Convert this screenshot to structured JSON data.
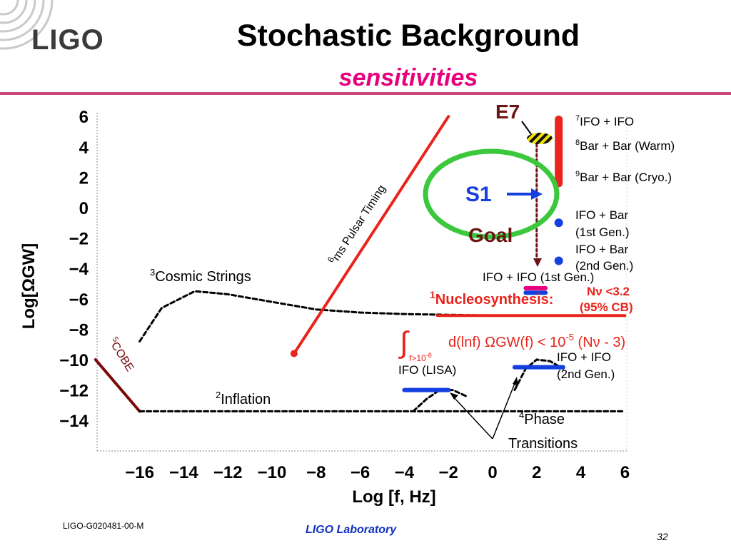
{
  "header": {
    "logo": "LIGO",
    "title": "Stochastic Background",
    "subtitle": "sensitivities"
  },
  "footer": {
    "doc_id": "LIGO-G020481-00-M",
    "lab": "LIGO Laboratory",
    "page": "32"
  },
  "colors": {
    "accent_pink": "#e6007e",
    "curve_red": "#e8241c",
    "ifo_blue": "#1540e0",
    "goal_brown": "#6b1414",
    "circle_green": "#3cc83c"
  },
  "chart_data": {
    "type": "line",
    "xlabel": "Log [f, Hz]",
    "ylabel": "Log[ΩGW]",
    "xlim": [
      -18,
      6
    ],
    "ylim": [
      -16,
      6.5
    ],
    "x_ticks": [
      "−16",
      "−14",
      "−12",
      "−10",
      "−8",
      "−6",
      "−4",
      "−2",
      "0",
      "2",
      "4",
      "6"
    ],
    "x_tick_values": [
      -16,
      -14,
      -12,
      -10,
      -8,
      -6,
      -4,
      -2,
      0,
      2,
      4,
      6
    ],
    "y_ticks": [
      "6",
      "4",
      "2",
      "0",
      "−2",
      "−4",
      "−6",
      "−8",
      "−10",
      "−12",
      "−14"
    ],
    "y_tick_values": [
      6,
      4,
      2,
      0,
      -2,
      -4,
      -6,
      -8,
      -10,
      -12,
      -14
    ],
    "grid": false,
    "series": [
      {
        "name": "COBE",
        "sup": "5",
        "style": "solid",
        "color": "#7a0a0a",
        "x": [
          -18,
          -16
        ],
        "y": [
          -10,
          -13.4
        ]
      },
      {
        "name": "Inflation",
        "sup": "2",
        "style": "dashed",
        "color": "#000000",
        "x": [
          -16,
          6
        ],
        "y": [
          -13.4,
          -13.4
        ]
      },
      {
        "name": "Cosmic Strings",
        "sup": "3",
        "style": "dashed",
        "color": "#000000",
        "x": [
          -16,
          -15,
          -13.5,
          -12,
          -10,
          -8,
          -6,
          -4,
          -2,
          0,
          2,
          4,
          6
        ],
        "y": [
          -8.8,
          -6.6,
          -5.5,
          -5.7,
          -6.2,
          -6.7,
          -6.9,
          -7.0,
          -7.05,
          -7.1,
          -7.1,
          -7.1,
          -7.1
        ]
      },
      {
        "name": "ms Pulsar Timing",
        "sup": "6",
        "style": "solid",
        "color": "#e8241c",
        "x": [
          -9,
          -2
        ],
        "y": [
          -9.6,
          6
        ]
      },
      {
        "name": "Nucleosynthesis",
        "sup": "1",
        "style": "solid",
        "color": "#e8241c",
        "x": [
          -2.5,
          6
        ],
        "y": [
          -7.1,
          -7.1
        ]
      },
      {
        "name": "Phase Transitions (low)",
        "style": "dashed",
        "color": "#000000",
        "x": [
          -3.6,
          -3.0,
          -2.4,
          -1.8,
          -1.2
        ],
        "y": [
          -13.4,
          -12.6,
          -12.0,
          -12.0,
          -12.4
        ]
      },
      {
        "name": "Phase Transitions (high)",
        "style": "dashed",
        "color": "#000000",
        "x": [
          1.0,
          1.5,
          2.0,
          2.6,
          3.2
        ],
        "y": [
          -12.0,
          -10.6,
          -10.0,
          -10.1,
          -10.6
        ]
      },
      {
        "name": "Goal",
        "style": "dotted",
        "color": "#6b1414",
        "x": [
          2.0,
          2.0
        ],
        "y": [
          4.5,
          -3.6
        ]
      }
    ],
    "sensitivities": [
      {
        "id": "bar-cryo",
        "kind": "bar",
        "x": [
          3.0,
          3.0
        ],
        "y": [
          5.8,
          1.6
        ],
        "color": "#e8241c"
      },
      {
        "id": "ifo-bar-1",
        "kind": "dot",
        "x": 3.0,
        "y": -1.0,
        "color": "#1540e0"
      },
      {
        "id": "ifo-bar-2",
        "kind": "dot",
        "x": 3.0,
        "y": -3.5,
        "color": "#1540e0"
      },
      {
        "id": "ifo-ifo-1st",
        "kind": "hbar",
        "x": [
          1.5,
          2.4
        ],
        "y": -5.6,
        "color": "#1540e0"
      },
      {
        "id": "ifo-ifo-1st-pink",
        "kind": "hbar",
        "x": [
          1.5,
          2.4
        ],
        "y": -5.3,
        "color": "#e6007e"
      },
      {
        "id": "ifo-ifo-2nd",
        "kind": "hbar",
        "x": [
          1.0,
          3.2
        ],
        "y": -10.5,
        "color": "#1540e0"
      },
      {
        "id": "ifo-lisa",
        "kind": "hbar",
        "x": [
          -4.0,
          -2.0
        ],
        "y": -12.0,
        "color": "#1540e0"
      }
    ],
    "annotations": {
      "e7": "E7",
      "s1": "S1",
      "goal": "Goal",
      "cosmic_strings": "Cosmic Strings",
      "cosmic_sup": "3",
      "pulsar": "ms Pulsar Timing",
      "pulsar_sup": "6",
      "cobe": "COBE",
      "cobe_sup": "5",
      "inflation": "Inflation",
      "inflation_sup": "2",
      "phase": "Phase",
      "phase_sup": "4",
      "transitions": "Transitions",
      "nucleo": "Nucleosynthesis:",
      "nucleo_sup": "1",
      "nnu": "Nν <3.2",
      "cb": "(95% CB)",
      "integral_sub": "f>10",
      "integral_sub_exp": "-8",
      "integral_expr": "d(lnf) ΩGW(f) < 10",
      "integral_exp": "-5",
      "integral_tail": " (Nν - 3)",
      "legend_ifo_ifo": "IFO + IFO",
      "legend_ifo_ifo_sup": "7",
      "legend_bar_warm": "Bar + Bar (Warm)",
      "legend_bar_warm_sup": "8",
      "legend_bar_cryo": "Bar + Bar (Cryo.)",
      "legend_bar_cryo_sup": "9",
      "ifo_bar_line1": "IFO + Bar",
      "ifo_bar_gen1": "(1st Gen.)",
      "ifo_bar_line2": "IFO + Bar",
      "ifo_bar_gen2": "(2nd Gen.)",
      "ifo_ifo_1st": "IFO + IFO (1st Gen.)",
      "ifo_lisa": "IFO (LISA)",
      "ifo_ifo_2nd_l1": "IFO + IFO",
      "ifo_ifo_2nd_l2": "(2nd Gen.)"
    }
  }
}
